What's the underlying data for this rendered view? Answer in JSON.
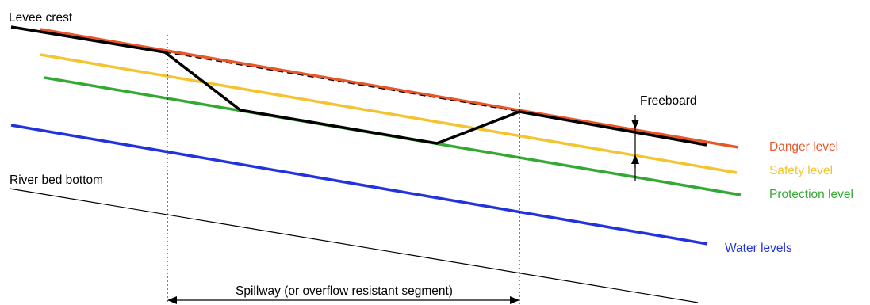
{
  "labels": {
    "levee_crest": "Levee crest",
    "river_bed_bottom": "River bed bottom",
    "freeboard": "Freeboard",
    "danger_level": "Danger level",
    "safety_level": "Safety level",
    "protection_level": "Protection level",
    "water_levels": "Water levels",
    "spillway": "Spillway (or overflow resistant segment)"
  },
  "colors": {
    "danger": "#e8562a",
    "safety": "#f4c430",
    "protection": "#33a833",
    "water": "#2233dd",
    "levee": "#000000",
    "text": "#000000"
  }
}
